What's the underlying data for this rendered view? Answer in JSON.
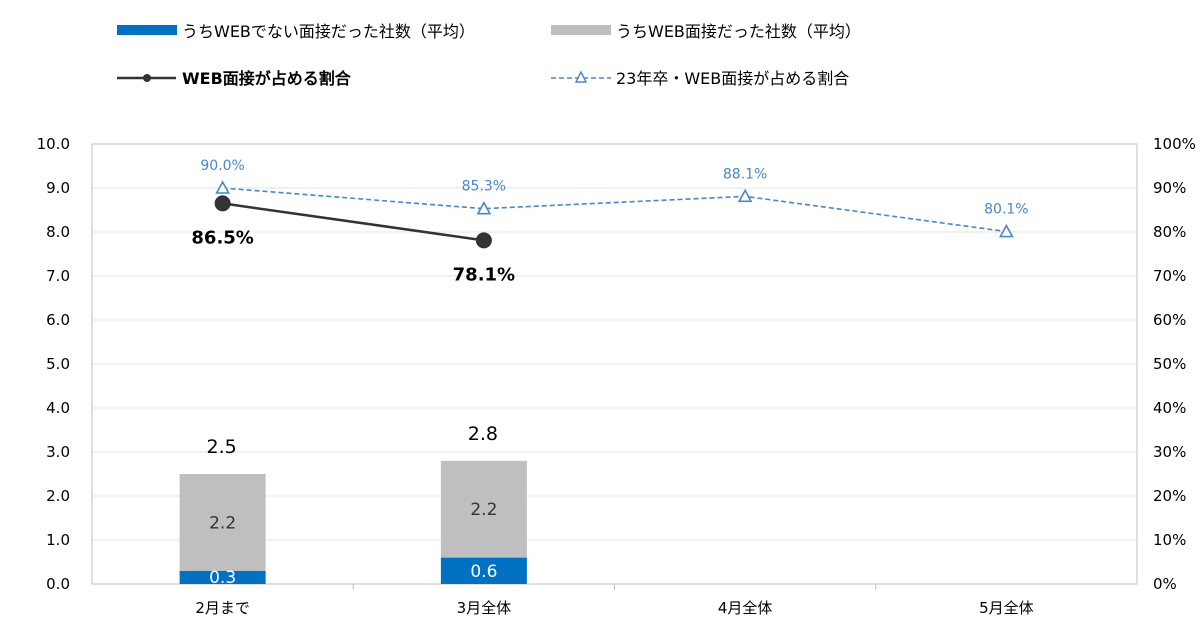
{
  "chart_data": {
    "type": "bar",
    "categories": [
      "2月まで",
      "3月全体",
      "4月全体",
      "5月全体"
    ],
    "series": [
      {
        "name": "うちWEBでない面接だった社数（平均）",
        "kind": "bar",
        "axis": "left",
        "color": "#0070c0",
        "values": [
          0.3,
          0.6,
          null,
          null
        ],
        "labels": [
          "0.3",
          "0.6",
          "",
          ""
        ]
      },
      {
        "name": "うちWEB面接だった社数（平均）",
        "kind": "bar",
        "axis": "left",
        "color": "#bfbfbf",
        "values": [
          2.2,
          2.2,
          null,
          null
        ],
        "labels": [
          "2.2",
          "2.2",
          "",
          ""
        ]
      },
      {
        "name": "WEB面接が占める割合",
        "kind": "line",
        "axis": "right",
        "color": "#333333",
        "values": [
          86.5,
          78.1,
          null,
          null
        ],
        "labels": [
          "86.5%",
          "78.1%",
          "",
          ""
        ]
      },
      {
        "name": "23年卒・WEB面接が占める割合",
        "kind": "line-dashed",
        "axis": "right",
        "color": "#4a86c8",
        "values": [
          90.0,
          85.3,
          88.1,
          80.1
        ],
        "labels": [
          "90.0%",
          "85.3%",
          "88.1%",
          "80.1%"
        ]
      }
    ],
    "totals": {
      "values": [
        2.5,
        2.8,
        null,
        null
      ],
      "labels": [
        "2.5",
        "2.8",
        "",
        ""
      ]
    },
    "ylim_left": [
      0,
      10
    ],
    "yticks_left": [
      "0.0",
      "1.0",
      "2.0",
      "3.0",
      "4.0",
      "5.0",
      "6.0",
      "7.0",
      "8.0",
      "9.0",
      "10.0"
    ],
    "ylim_right": [
      0,
      100
    ],
    "yticks_right": [
      "0%",
      "10%",
      "20%",
      "30%",
      "40%",
      "50%",
      "60%",
      "70%",
      "80%",
      "90%",
      "100%"
    ],
    "grid": true,
    "legend_position": "top"
  }
}
